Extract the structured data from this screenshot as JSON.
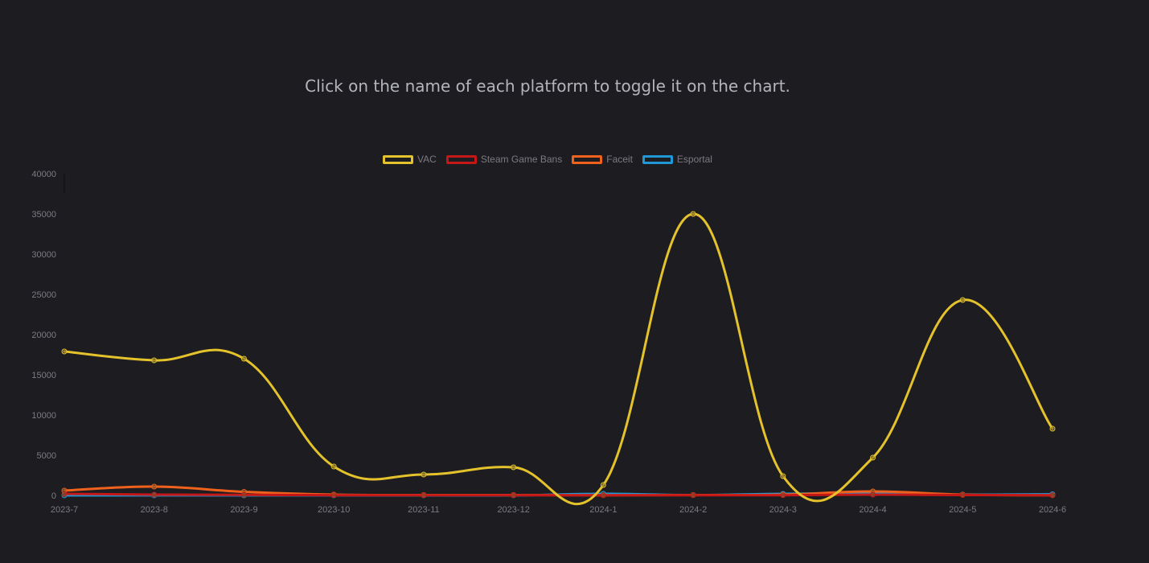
{
  "instruction": "Click on the name of each platform to toggle it on the chart.",
  "chart_data": {
    "type": "line",
    "categories": [
      "2023-7",
      "2023-8",
      "2023-9",
      "2023-10",
      "2023-11",
      "2023-12",
      "2024-1",
      "2024-2",
      "2024-3",
      "2024-4",
      "2024-5",
      "2024-6"
    ],
    "ylim": [
      0,
      40000
    ],
    "yticks": [
      0,
      5000,
      10000,
      15000,
      20000,
      25000,
      30000,
      35000,
      40000
    ],
    "ytick_labels": [
      "0",
      "5000",
      "10000",
      "15000",
      "20000",
      "25000",
      "30000",
      "35000",
      "40000"
    ],
    "legend_position": "top",
    "grid": false,
    "series": [
      {
        "name": "VAC",
        "color": "#e4c22c",
        "values": [
          17900,
          16800,
          17000,
          3600,
          2600,
          3500,
          1300,
          35000,
          2400,
          4700,
          24300,
          8300
        ]
      },
      {
        "name": "Steam Game Bans",
        "color": "#c51717",
        "values": [
          200,
          100,
          80,
          30,
          20,
          20,
          20,
          20,
          30,
          100,
          50,
          30
        ]
      },
      {
        "name": "Faceit",
        "color": "#f0621c",
        "values": [
          600,
          1100,
          450,
          100,
          50,
          50,
          30,
          50,
          100,
          500,
          100,
          20
        ]
      },
      {
        "name": "Esportal",
        "color": "#2098d6",
        "values": [
          10,
          10,
          10,
          10,
          10,
          10,
          200,
          50,
          200,
          250,
          100,
          150
        ]
      }
    ]
  }
}
